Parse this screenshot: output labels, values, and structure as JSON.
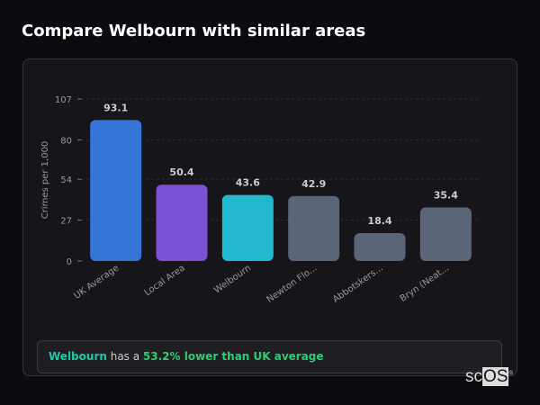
{
  "header": {
    "title": "Compare Welbourn with similar areas"
  },
  "chart_data": {
    "type": "bar",
    "title": "",
    "xlabel": "",
    "ylabel": "Crimes per 1,000",
    "ylim": [
      0,
      107
    ],
    "yticks": [
      0,
      27,
      54,
      80,
      107
    ],
    "grid": true,
    "categories": [
      "UK Average",
      "Local Area",
      "Welbourn",
      "Newton Flo...",
      "Abbotskers...",
      "Bryn (Neat..."
    ],
    "values": [
      93.1,
      50.4,
      43.6,
      42.9,
      18.4,
      35.4
    ],
    "value_labels": [
      "93.1",
      "50.4",
      "43.6",
      "42.9",
      "18.4",
      "35.4"
    ],
    "colors": [
      "#3575d8",
      "#7b52d6",
      "#22b8cf",
      "#5b6578",
      "#5b6578",
      "#5b6578"
    ]
  },
  "insight": {
    "area": "Welbourn",
    "middle": " has a ",
    "comparison": "53.2% lower than UK average"
  },
  "logo": {
    "text_a": "sc",
    "text_b": "OS",
    "mark": "®"
  }
}
